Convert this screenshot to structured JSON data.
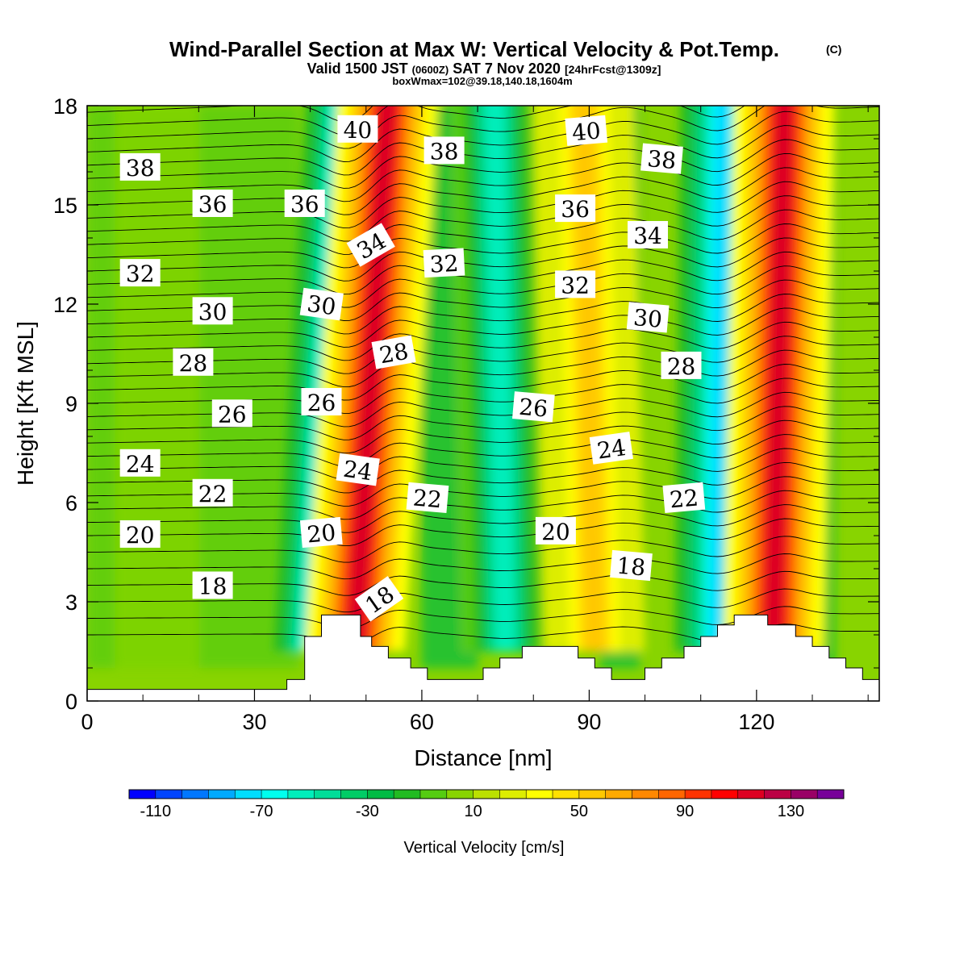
{
  "header": {
    "title": "Wind-Parallel Section at Max W: Vertical Velocity & Pot.Temp.",
    "title_mark": "(C)",
    "valid_prefix": "Valid 1500 JST",
    "valid_zulu": "(0600Z)",
    "valid_date": "SAT 7 Nov 2020",
    "valid_fcst": "[24hrFcst@1309z]",
    "box_info": "boxWmax=102@39.18,140.18,1604m"
  },
  "chart_data": {
    "type": "heatmap",
    "xlabel": "Distance [nm]",
    "ylabel": "Height [Kft MSL]",
    "xlim": [
      0,
      142
    ],
    "ylim": [
      0,
      18
    ],
    "x_ticks": [
      0,
      30,
      60,
      90,
      120
    ],
    "y_ticks": [
      0,
      3,
      6,
      9,
      12,
      15,
      18
    ],
    "grid": false,
    "colorbar": {
      "label": "Vertical Velocity [cm/s]",
      "placement": "bottom",
      "min": -120,
      "max": 150,
      "step": 10,
      "tick_values": [
        -110,
        -70,
        -30,
        10,
        50,
        90,
        130
      ],
      "colors": [
        "#0000ff",
        "#0044ff",
        "#0077ff",
        "#00aaff",
        "#00ddff",
        "#00ffee",
        "#00eebb",
        "#00dd99",
        "#00cc66",
        "#00bb44",
        "#22bb22",
        "#55cc11",
        "#88d400",
        "#bbe000",
        "#dded00",
        "#ffff00",
        "#ffe000",
        "#ffc800",
        "#ffaa00",
        "#ff8800",
        "#ff6600",
        "#ff3300",
        "#ff0000",
        "#dd0022",
        "#bb0044",
        "#990066",
        "#770099"
      ]
    },
    "updraft_bands": [
      {
        "x_top": 54,
        "x_bottom": 48,
        "peak": 115
      },
      {
        "x_top": 89,
        "x_bottom": 91,
        "peak": 50
      },
      {
        "x_top": 125,
        "x_bottom": 123,
        "peak": 110
      }
    ],
    "downdraft_bands": [
      {
        "x_top": 47,
        "x_bottom": 41,
        "peak": -85
      },
      {
        "x_top": 114,
        "x_bottom": 113,
        "peak": -80
      },
      {
        "x_top": 73,
        "x_bottom": 75,
        "peak": -55
      }
    ],
    "terrain": [
      {
        "x": 0,
        "h": 0.35
      },
      {
        "x": 35.8,
        "h": 0.35
      },
      {
        "x": 35.8,
        "h": 0.65
      },
      {
        "x": 39,
        "h": 0.65
      },
      {
        "x": 39,
        "h": 1.3
      },
      {
        "x": 39,
        "h": 1.95
      },
      {
        "x": 42,
        "h": 1.95
      },
      {
        "x": 42,
        "h": 2.6
      },
      {
        "x": 49,
        "h": 2.6
      },
      {
        "x": 49,
        "h": 1.95
      },
      {
        "x": 51,
        "h": 1.95
      },
      {
        "x": 51,
        "h": 1.65
      },
      {
        "x": 54,
        "h": 1.65
      },
      {
        "x": 54,
        "h": 1.3
      },
      {
        "x": 58,
        "h": 1.3
      },
      {
        "x": 58,
        "h": 1.0
      },
      {
        "x": 61,
        "h": 1.0
      },
      {
        "x": 61,
        "h": 0.65
      },
      {
        "x": 71,
        "h": 0.65
      },
      {
        "x": 71,
        "h": 1.0
      },
      {
        "x": 74,
        "h": 1.0
      },
      {
        "x": 74,
        "h": 1.3
      },
      {
        "x": 78,
        "h": 1.3
      },
      {
        "x": 78,
        "h": 1.65
      },
      {
        "x": 88,
        "h": 1.65
      },
      {
        "x": 88,
        "h": 1.3
      },
      {
        "x": 91,
        "h": 1.3
      },
      {
        "x": 91,
        "h": 1.0
      },
      {
        "x": 94,
        "h": 1.0
      },
      {
        "x": 94,
        "h": 0.65
      },
      {
        "x": 100,
        "h": 0.65
      },
      {
        "x": 100,
        "h": 1.0
      },
      {
        "x": 103,
        "h": 1.0
      },
      {
        "x": 103,
        "h": 1.3
      },
      {
        "x": 107,
        "h": 1.3
      },
      {
        "x": 107,
        "h": 1.65
      },
      {
        "x": 110,
        "h": 1.65
      },
      {
        "x": 110,
        "h": 1.95
      },
      {
        "x": 113,
        "h": 1.95
      },
      {
        "x": 113,
        "h": 2.3
      },
      {
        "x": 116,
        "h": 2.3
      },
      {
        "x": 116,
        "h": 2.6
      },
      {
        "x": 122,
        "h": 2.6
      },
      {
        "x": 122,
        "h": 2.3
      },
      {
        "x": 127,
        "h": 2.3
      },
      {
        "x": 127,
        "h": 1.95
      },
      {
        "x": 130,
        "h": 1.95
      },
      {
        "x": 130,
        "h": 1.65
      },
      {
        "x": 133,
        "h": 1.65
      },
      {
        "x": 133,
        "h": 1.3
      },
      {
        "x": 136,
        "h": 1.3
      },
      {
        "x": 136,
        "h": 1.0
      },
      {
        "x": 139,
        "h": 1.0
      },
      {
        "x": 139,
        "h": 0.65
      },
      {
        "x": 142,
        "h": 0.65
      }
    ],
    "isentrope_start_heights": [
      2.0,
      2.5,
      3.0,
      3.5,
      4.0,
      4.5,
      5.0,
      5.4,
      5.8,
      6.2,
      6.6,
      7.0,
      7.4,
      7.8,
      8.2,
      8.6,
      9.0,
      9.4,
      9.8,
      10.2,
      10.6,
      11.0,
      11.4,
      11.8,
      12.2,
      12.6,
      13.0,
      13.4,
      13.8,
      14.2,
      14.6,
      15.0,
      15.4,
      15.8,
      16.2,
      16.6,
      17.0,
      17.4,
      17.8
    ],
    "contour_labels": [
      {
        "text": "38",
        "x": 9.5,
        "y": 16.1,
        "angle": 0
      },
      {
        "text": "36",
        "x": 22.5,
        "y": 15.0,
        "angle": 0
      },
      {
        "text": "36",
        "x": 39,
        "y": 15.0,
        "angle": 0
      },
      {
        "text": "40",
        "x": 48.5,
        "y": 17.25,
        "angle": 0
      },
      {
        "text": "38",
        "x": 64,
        "y": 16.6,
        "angle": 0
      },
      {
        "text": "40",
        "x": 89.5,
        "y": 17.2,
        "angle": -5
      },
      {
        "text": "38",
        "x": 103,
        "y": 16.35,
        "angle": 5
      },
      {
        "text": "34",
        "x": 51,
        "y": 13.75,
        "angle": -30
      },
      {
        "text": "36",
        "x": 87.5,
        "y": 14.85,
        "angle": 0
      },
      {
        "text": "34",
        "x": 100.5,
        "y": 14.05,
        "angle": 0
      },
      {
        "text": "32",
        "x": 9.5,
        "y": 12.9,
        "angle": 0
      },
      {
        "text": "32",
        "x": 64,
        "y": 13.2,
        "angle": -3
      },
      {
        "text": "32",
        "x": 87.5,
        "y": 12.55,
        "angle": 0
      },
      {
        "text": "30",
        "x": 22.5,
        "y": 11.75,
        "angle": 0
      },
      {
        "text": "30",
        "x": 42,
        "y": 11.95,
        "angle": 8
      },
      {
        "text": "30",
        "x": 100.5,
        "y": 11.55,
        "angle": 5
      },
      {
        "text": "28",
        "x": 19,
        "y": 10.2,
        "angle": 0
      },
      {
        "text": "28",
        "x": 55,
        "y": 10.5,
        "angle": -10
      },
      {
        "text": "28",
        "x": 106.5,
        "y": 10.1,
        "angle": 0
      },
      {
        "text": "26",
        "x": 26,
        "y": 8.65,
        "angle": 0
      },
      {
        "text": "26",
        "x": 42,
        "y": 9.0,
        "angle": 0
      },
      {
        "text": "26",
        "x": 80,
        "y": 8.85,
        "angle": 5
      },
      {
        "text": "24",
        "x": 9.5,
        "y": 7.15,
        "angle": 0
      },
      {
        "text": "24",
        "x": 48.5,
        "y": 6.95,
        "angle": 8
      },
      {
        "text": "24",
        "x": 94,
        "y": 7.6,
        "angle": -8
      },
      {
        "text": "22",
        "x": 22.5,
        "y": 6.25,
        "angle": 0
      },
      {
        "text": "22",
        "x": 61,
        "y": 6.1,
        "angle": 5
      },
      {
        "text": "22",
        "x": 107,
        "y": 6.1,
        "angle": -5
      },
      {
        "text": "20",
        "x": 9.5,
        "y": 5.0,
        "angle": 0
      },
      {
        "text": "20",
        "x": 42,
        "y": 5.05,
        "angle": -5
      },
      {
        "text": "20",
        "x": 84,
        "y": 5.1,
        "angle": 0
      },
      {
        "text": "18",
        "x": 22.5,
        "y": 3.45,
        "angle": 0
      },
      {
        "text": "18",
        "x": 52.5,
        "y": 3.05,
        "angle": -35
      },
      {
        "text": "18",
        "x": 97.5,
        "y": 4.05,
        "angle": 5
      }
    ]
  }
}
